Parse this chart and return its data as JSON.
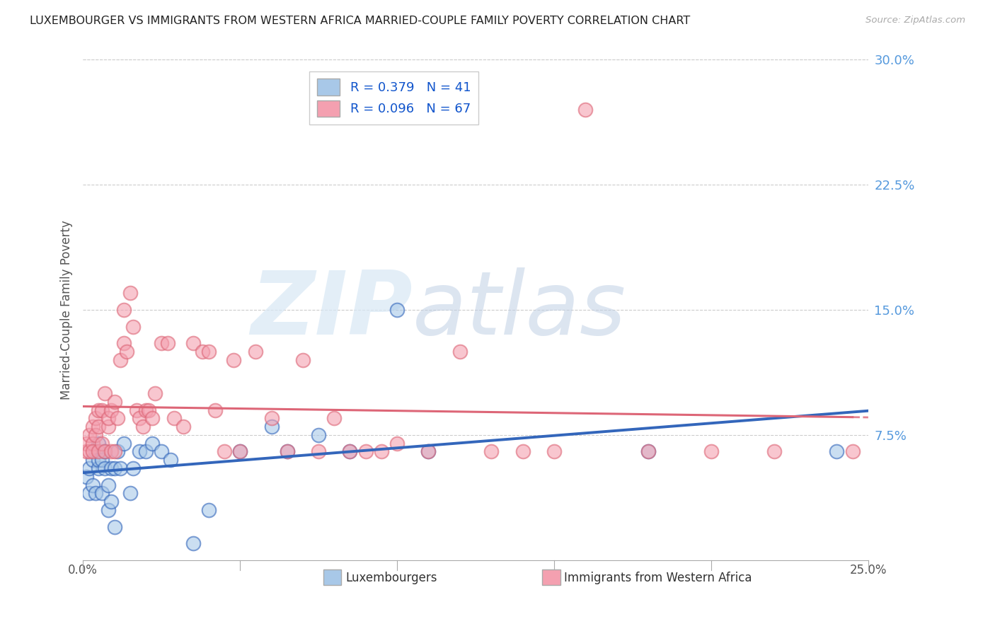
{
  "title": "LUXEMBOURGER VS IMMIGRANTS FROM WESTERN AFRICA MARRIED-COUPLE FAMILY POVERTY CORRELATION CHART",
  "source": "Source: ZipAtlas.com",
  "xlabel_blue": "Luxembourgers",
  "xlabel_pink": "Immigrants from Western Africa",
  "ylabel": "Married-Couple Family Poverty",
  "R_blue": 0.379,
  "N_blue": 41,
  "R_pink": 0.096,
  "N_pink": 67,
  "xlim": [
    0.0,
    0.25
  ],
  "ylim": [
    0.0,
    0.3
  ],
  "yticks": [
    0.075,
    0.15,
    0.225,
    0.3
  ],
  "ytick_labels": [
    "7.5%",
    "15.0%",
    "22.5%",
    "30.0%"
  ],
  "color_blue": "#A8C8E8",
  "color_pink": "#F4A0B0",
  "color_blue_line": "#3366BB",
  "color_pink_line": "#DD6677",
  "blue_x": [
    0.001,
    0.002,
    0.002,
    0.003,
    0.003,
    0.004,
    0.004,
    0.005,
    0.005,
    0.005,
    0.006,
    0.006,
    0.007,
    0.007,
    0.008,
    0.008,
    0.009,
    0.009,
    0.01,
    0.01,
    0.011,
    0.012,
    0.013,
    0.015,
    0.016,
    0.018,
    0.02,
    0.022,
    0.025,
    0.028,
    0.035,
    0.04,
    0.05,
    0.06,
    0.065,
    0.075,
    0.085,
    0.1,
    0.11,
    0.18,
    0.24
  ],
  "blue_y": [
    0.05,
    0.04,
    0.055,
    0.06,
    0.045,
    0.04,
    0.065,
    0.055,
    0.06,
    0.07,
    0.04,
    0.06,
    0.055,
    0.065,
    0.045,
    0.03,
    0.055,
    0.035,
    0.02,
    0.055,
    0.065,
    0.055,
    0.07,
    0.04,
    0.055,
    0.065,
    0.065,
    0.07,
    0.065,
    0.06,
    0.01,
    0.03,
    0.065,
    0.08,
    0.065,
    0.075,
    0.065,
    0.15,
    0.065,
    0.065,
    0.065
  ],
  "pink_x": [
    0.001,
    0.001,
    0.002,
    0.002,
    0.003,
    0.003,
    0.003,
    0.004,
    0.004,
    0.005,
    0.005,
    0.005,
    0.006,
    0.006,
    0.007,
    0.007,
    0.008,
    0.008,
    0.009,
    0.009,
    0.01,
    0.01,
    0.011,
    0.012,
    0.013,
    0.013,
    0.014,
    0.015,
    0.016,
    0.017,
    0.018,
    0.019,
    0.02,
    0.021,
    0.022,
    0.023,
    0.025,
    0.027,
    0.029,
    0.032,
    0.035,
    0.038,
    0.04,
    0.042,
    0.045,
    0.048,
    0.05,
    0.055,
    0.06,
    0.065,
    0.07,
    0.075,
    0.08,
    0.085,
    0.09,
    0.095,
    0.1,
    0.11,
    0.12,
    0.13,
    0.14,
    0.15,
    0.16,
    0.18,
    0.2,
    0.22,
    0.245
  ],
  "pink_y": [
    0.065,
    0.07,
    0.065,
    0.075,
    0.07,
    0.08,
    0.065,
    0.075,
    0.085,
    0.065,
    0.08,
    0.09,
    0.07,
    0.09,
    0.065,
    0.1,
    0.08,
    0.085,
    0.09,
    0.065,
    0.095,
    0.065,
    0.085,
    0.12,
    0.13,
    0.15,
    0.125,
    0.16,
    0.14,
    0.09,
    0.085,
    0.08,
    0.09,
    0.09,
    0.085,
    0.1,
    0.13,
    0.13,
    0.085,
    0.08,
    0.13,
    0.125,
    0.125,
    0.09,
    0.065,
    0.12,
    0.065,
    0.125,
    0.085,
    0.065,
    0.12,
    0.065,
    0.085,
    0.065,
    0.065,
    0.065,
    0.07,
    0.065,
    0.125,
    0.065,
    0.065,
    0.065,
    0.27,
    0.065,
    0.065,
    0.065,
    0.065
  ]
}
